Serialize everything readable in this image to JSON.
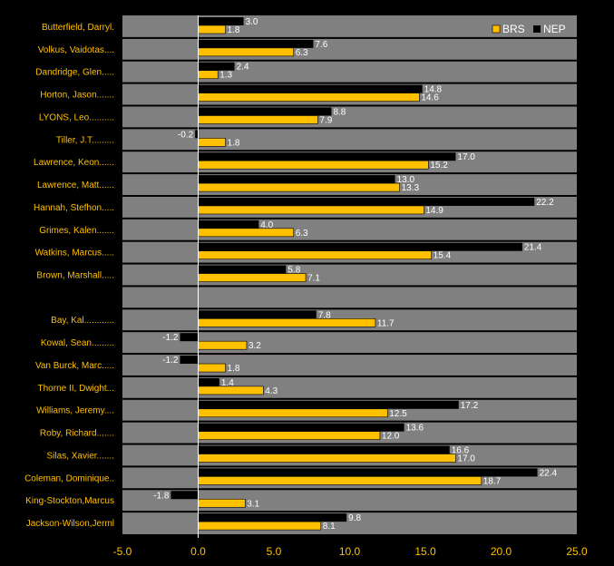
{
  "chart_data": {
    "type": "bar",
    "orientation": "horizontal",
    "xlim": [
      -5,
      25
    ],
    "xticks": [
      -5,
      0,
      5,
      10,
      15,
      20,
      25
    ],
    "xtick_labels": [
      "-5.0",
      "0.0",
      "5.0",
      "10.0",
      "15.0",
      "20.0",
      "25.0"
    ],
    "grid": false,
    "legend_position": "top-right",
    "categories": [
      "Butterfield, Darryl.",
      "Volkus, Vaidotas....",
      "Dandridge, Glen.....",
      "Horton, Jason.......",
      "LYONS, Leo..........",
      "Tiller, J.T.........",
      "Lawrence, Keon......",
      "Lawrence, Matt......",
      "Hannah, Stefhon.....",
      "Grimes, Kalen.......",
      "Watkins, Marcus.....",
      "Brown, Marshall.....",
      "",
      "Bay, Kal............",
      "Kowal, Sean.........",
      "Van Burck, Marc.....",
      "Thorne II, Dwight...",
      "Williams, Jeremy....",
      "Roby, Richard.......",
      "Silas, Xavier.......",
      "Coleman, Dominique..",
      "King-Stockton,Marcus",
      "Jackson-Wilson,Jerml"
    ],
    "series": [
      {
        "name": "NEP",
        "color": "#000000",
        "values": [
          3.0,
          7.6,
          2.4,
          14.8,
          8.8,
          -0.2,
          17.0,
          13.0,
          22.2,
          4.0,
          21.4,
          5.8,
          null,
          7.8,
          -1.2,
          -1.2,
          1.4,
          17.2,
          13.6,
          16.6,
          22.4,
          -1.8,
          9.8
        ],
        "labels": [
          "3.0",
          "7.6",
          "2.4",
          "14.8",
          "8.8",
          "-0.2",
          "17.0",
          "13.0",
          "22.2",
          "4.0",
          "21.4",
          "5.8",
          "",
          "7.8",
          "-1.2",
          "-1.2",
          "1.4",
          "17.2",
          "13.6",
          "16.6",
          "22.4",
          "-1.8",
          "9.8"
        ]
      },
      {
        "name": "BRS",
        "color": "#FFC000",
        "values": [
          1.8,
          6.3,
          1.3,
          14.6,
          7.9,
          1.8,
          15.2,
          13.3,
          14.9,
          6.3,
          15.4,
          7.1,
          null,
          11.7,
          3.2,
          1.8,
          4.3,
          12.5,
          12.0,
          17.0,
          18.7,
          3.1,
          8.1
        ],
        "labels": [
          "1.8",
          "6.3",
          "1.3",
          "14.6",
          "7.9",
          "1.8",
          "15.2",
          "13.3",
          "14.9",
          "6.3",
          "15.4",
          "7.1",
          "",
          "11.7",
          "3.2",
          "1.8",
          "4.3",
          "12.5",
          "12.0",
          "17.0",
          "18.7",
          "3.1",
          "8.1"
        ]
      }
    ],
    "legend": [
      "BRS",
      "NEP"
    ],
    "colors": {
      "background": "#000000",
      "plot_area": "#808080",
      "row_separator": "#000000",
      "label_text": "#FFC000",
      "value_text": "#FFFFFF",
      "zero_line": "#FFFFFF"
    }
  }
}
